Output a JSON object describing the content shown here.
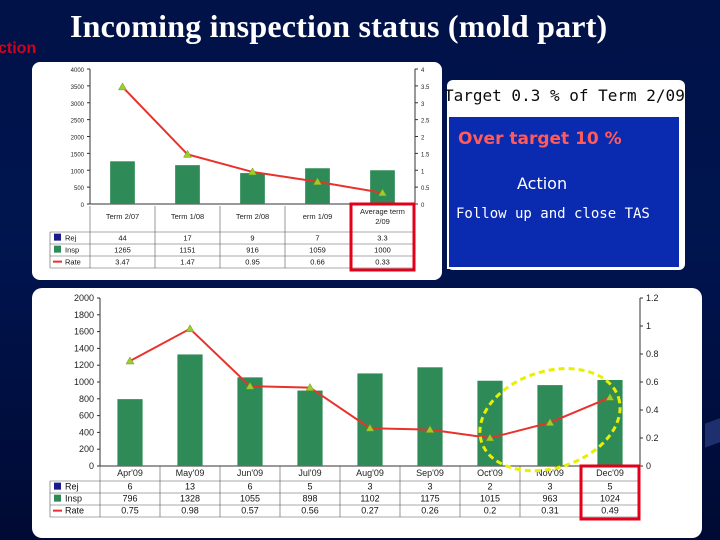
{
  "page": {
    "title": "Incoming inspection status (mold part)",
    "cut_label": "ction"
  },
  "info": {
    "target": "Target 0.3 % of Term 2/09",
    "over_target": "Over target 10 %",
    "action_label": "Action",
    "follow_up": "Follow up and close TAS"
  },
  "chart_data": [
    {
      "type": "bar",
      "categories": [
        "Term 2/07",
        "Term 1/08",
        "Term 2/08",
        "erm 1/09",
        "Average term 2/09"
      ],
      "series": [
        {
          "name": "Insp",
          "type": "bar",
          "axis": "left",
          "color": "#2e8b57",
          "values": [
            1265,
            1151,
            916,
            1059,
            1000
          ]
        },
        {
          "name": "Rate",
          "type": "line",
          "axis": "right",
          "color": "#e8322c",
          "values": [
            3.47,
            1.47,
            0.95,
            0.66,
            0.33
          ]
        }
      ],
      "table": {
        "rows": [
          {
            "label": "Rej",
            "color": "#1a1a8c",
            "values": [
              "44",
              "17",
              "9",
              "7",
              "3.3"
            ]
          },
          {
            "label": "Insp",
            "color": "#2e8b57",
            "values": [
              "1265",
              "1151",
              "916",
              "1059",
              "1000"
            ]
          },
          {
            "label": "Rate",
            "color": "#e8322c",
            "values": [
              "3.47",
              "1.47",
              "0.95",
              "0.66",
              "0.33"
            ]
          }
        ]
      },
      "left_axis": {
        "ylim": [
          0,
          4000
        ],
        "ticks": [
          "0",
          "500",
          "1000",
          "1500",
          "2000",
          "2500",
          "3000",
          "3500",
          "4000"
        ]
      },
      "right_axis": {
        "ylim": [
          0,
          4
        ],
        "ticks": [
          "0",
          "0.5",
          "1",
          "1.5",
          "2",
          "2.5",
          "3",
          "3.5",
          "4"
        ]
      },
      "highlight": "Average term 2/09",
      "grid": false,
      "legend": "table"
    },
    {
      "type": "bar",
      "categories": [
        "Apr'09",
        "May'09",
        "Jun'09",
        "Jul'09",
        "Aug'09",
        "Sep'09",
        "Oct'09",
        "Nov'09",
        "Dec'09"
      ],
      "series": [
        {
          "name": "Insp",
          "type": "bar",
          "axis": "left",
          "color": "#2e8b57",
          "values": [
            796,
            1328,
            1055,
            898,
            1102,
            1175,
            1015,
            963,
            1024
          ]
        },
        {
          "name": "Rate",
          "type": "line",
          "axis": "right",
          "color": "#e8322c",
          "values": [
            0.75,
            0.98,
            0.57,
            0.56,
            0.27,
            0.26,
            0.2,
            0.31,
            0.49
          ]
        }
      ],
      "table": {
        "rows": [
          {
            "label": "Rej",
            "color": "#1a1a8c",
            "values": [
              "6",
              "13",
              "6",
              "5",
              "3",
              "3",
              "2",
              "3",
              "5"
            ]
          },
          {
            "label": "Insp",
            "color": "#2e8b57",
            "values": [
              "796",
              "1328",
              "1055",
              "898",
              "1102",
              "1175",
              "1015",
              "963",
              "1024"
            ]
          },
          {
            "label": "Rate",
            "color": "#e8322c",
            "values": [
              "0.75",
              "0.98",
              "0.57",
              "0.56",
              "0.27",
              "0.26",
              "0.2",
              "0.31",
              "0.49"
            ]
          }
        ]
      },
      "left_axis": {
        "ylim": [
          0,
          2000
        ],
        "ticks": [
          "0",
          "200",
          "400",
          "600",
          "800",
          "1000",
          "1200",
          "1400",
          "1600",
          "1800",
          "2000"
        ]
      },
      "right_axis": {
        "ylim": [
          0,
          1.2
        ],
        "ticks": [
          "0",
          "0.2",
          "0.4",
          "0.6",
          "0.8",
          "1",
          "1.2"
        ]
      },
      "highlight": "Dec'09",
      "highlight_ellipse": [
        "Oct'09",
        "Nov'09",
        "Dec'09"
      ],
      "grid": false,
      "legend": "table"
    }
  ]
}
